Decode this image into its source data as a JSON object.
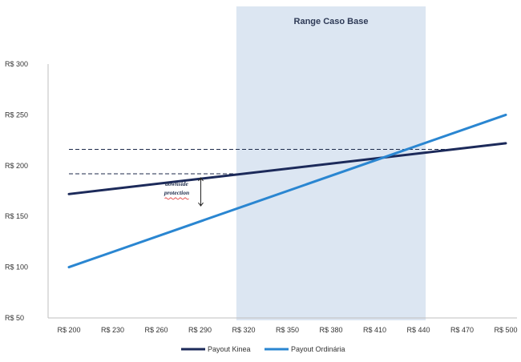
{
  "chart_data": {
    "type": "line",
    "title": "",
    "xlabel": "",
    "ylabel": "",
    "x": [
      200,
      230,
      260,
      290,
      320,
      350,
      380,
      410,
      440,
      470,
      500
    ],
    "x_tick_labels": [
      "R$ 200",
      "R$ 230",
      "R$ 260",
      "R$ 290",
      "R$ 320",
      "R$ 350",
      "R$ 380",
      "R$ 410",
      "R$ 440",
      "R$ 470",
      "R$ 500"
    ],
    "xlim": [
      200,
      500
    ],
    "ylim": [
      50,
      300
    ],
    "y_ticks": [
      50,
      100,
      150,
      200,
      250,
      300
    ],
    "y_tick_labels": [
      "R$ 50",
      "R$ 100",
      "R$ 150",
      "R$ 200",
      "R$ 250",
      "R$ 300"
    ],
    "grid": false,
    "legend_position": "bottom",
    "series": [
      {
        "name": "Payout Kinea",
        "color": "#1c2a5a",
        "points": [
          [
            200,
            172
          ],
          [
            500,
            222
          ]
        ]
      },
      {
        "name": "Payout Ordinária",
        "color": "#2a86d1",
        "points": [
          [
            200,
            100
          ],
          [
            500,
            250
          ]
        ]
      }
    ],
    "shaded_region": {
      "label": "Range Caso Base",
      "x_start": 315,
      "x_end": 445,
      "color": "#dce6f2"
    },
    "reference_lines": [
      {
        "style": "dashed",
        "y": 216,
        "x_start": 200,
        "x_end": 460
      },
      {
        "style": "dashed",
        "y": 192,
        "x_start": 200,
        "x_end": 320
      }
    ],
    "annotations": [
      {
        "text_lines": [
          "downside",
          "protection"
        ],
        "x": 290,
        "y_from": 158,
        "y_to": 192
      }
    ]
  }
}
